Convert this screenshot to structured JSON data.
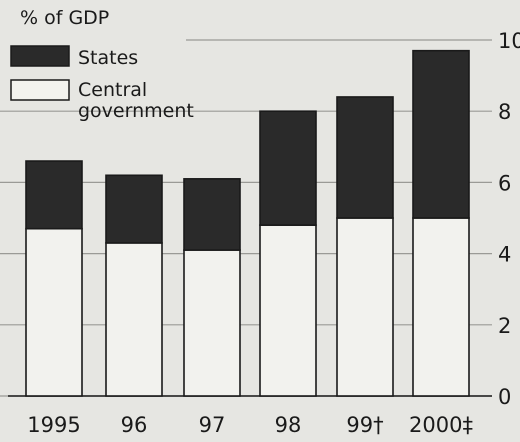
{
  "chart_data": {
    "type": "bar",
    "stacked": true,
    "unit_label": "% of GDP",
    "categories": [
      "1995",
      "96",
      "97",
      "98",
      "99†",
      "2000‡"
    ],
    "series": [
      {
        "name": "Central government",
        "values": [
          4.7,
          4.3,
          4.1,
          4.8,
          5.0,
          5.0
        ],
        "color": "#f2f2ee"
      },
      {
        "name": "States",
        "values": [
          1.9,
          1.9,
          2.0,
          3.2,
          3.4,
          4.7
        ],
        "color": "#2a2a2a"
      }
    ],
    "yticks": [
      0,
      2,
      4,
      6,
      8,
      10
    ],
    "ylim": [
      0,
      10
    ],
    "grid": true,
    "legend_position": "top-left",
    "axis_side": "right"
  }
}
